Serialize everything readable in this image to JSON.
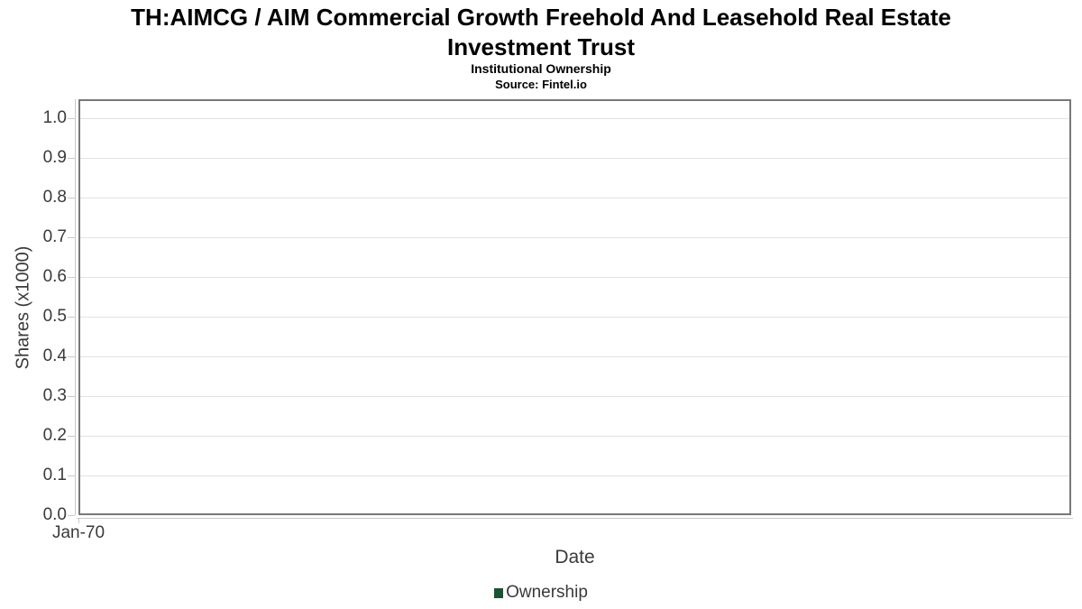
{
  "header": {
    "title_line1": "TH:AIMCG / AIM Commercial Growth Freehold And Leasehold Real Estate",
    "title_line2": "Investment Trust",
    "subtitle": "Institutional Ownership",
    "source": "Source: Fintel.io"
  },
  "chart_data": {
    "type": "line",
    "title": "TH:AIMCG / AIM Commercial Growth Freehold And Leasehold Real Estate Investment Trust",
    "subtitle": "Institutional Ownership",
    "source": "Source: Fintel.io",
    "xlabel": "Date",
    "ylabel": "Shares (x1000)",
    "ylim": [
      0.0,
      1.0
    ],
    "yticks": [
      0.0,
      0.1,
      0.2,
      0.3,
      0.4,
      0.5,
      0.6,
      0.7,
      0.8,
      0.9,
      1.0
    ],
    "ytick_labels": [
      "0.0",
      "0.1",
      "0.2",
      "0.3",
      "0.4",
      "0.5",
      "0.6",
      "0.7",
      "0.8",
      "0.9",
      "1.0"
    ],
    "xtick_labels": [
      "Jan-70"
    ],
    "x": [],
    "series": [
      {
        "name": "Ownership",
        "color": "#17562f",
        "values": []
      }
    ],
    "legend_position": "bottom",
    "grid": "horizontal",
    "colors": {
      "series_green": "#17562f",
      "plot_border": "#787878",
      "gridline": "#e2e2e2",
      "axis_line": "#c9c9c9",
      "tick_text": "#3a3a3a",
      "title_text": "#000000"
    }
  }
}
